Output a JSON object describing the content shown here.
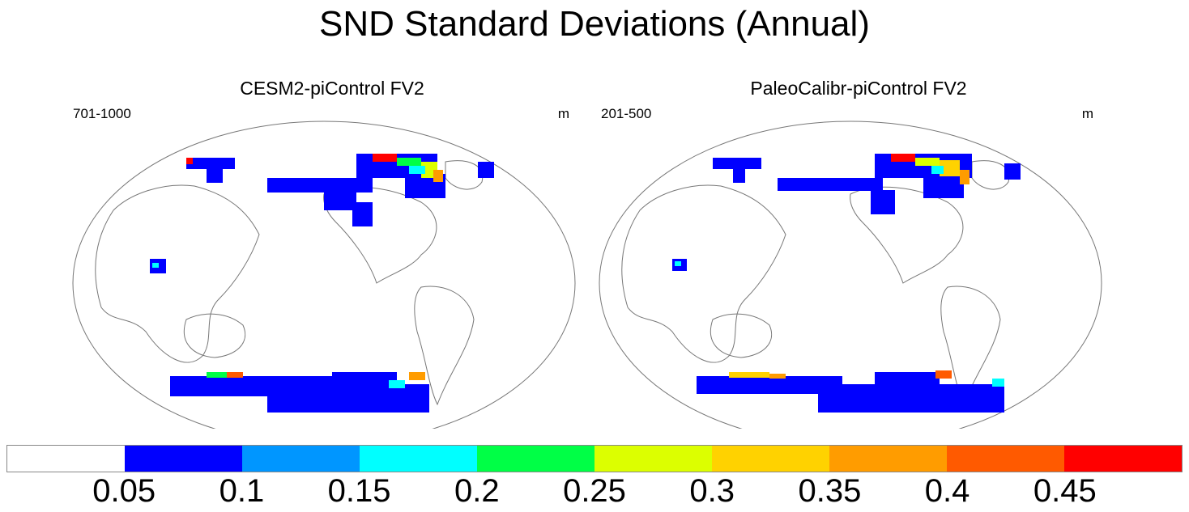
{
  "title": "SND Standard Deviations (Annual)",
  "panels": [
    {
      "title": "CESM2-piControl FV2",
      "years": "701-1000",
      "units": "m"
    },
    {
      "title": "PaleoCalibr-piControl FV2",
      "years": "201-500",
      "units": "m"
    }
  ],
  "colorbar": {
    "colors": [
      "#ffffff",
      "#0000ff",
      "#0096ff",
      "#00ffff",
      "#00ff46",
      "#dcff00",
      "#ffd200",
      "#ff9c00",
      "#ff5a00",
      "#ff0000"
    ],
    "tick_labels": [
      "0.05",
      "0.1",
      "0.15",
      "0.2",
      "0.25",
      "0.3",
      "0.35",
      "0.4",
      "0.45"
    ]
  }
}
